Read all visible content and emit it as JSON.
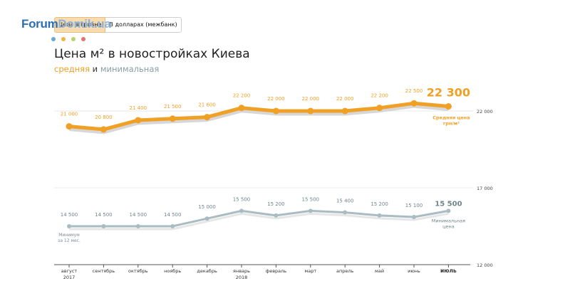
{
  "logo": {
    "part1": "Forum",
    "part2": "Domik.ua",
    "dot_colors": [
      "#6aa5d8",
      "#f2b441",
      "#b7d36c",
      "#e0736f"
    ]
  },
  "toggle": {
    "active_label": "Цена в гривне",
    "inactive_label": "В долларах (межбанк)"
  },
  "header": {
    "title": "Цена м² в новостройках Киева",
    "subtitle_avg": "средняя",
    "subtitle_and": " и ",
    "subtitle_min": "минимальная"
  },
  "colors": {
    "avg": "#f0a024",
    "avg_shadow": "#d7d7d7",
    "min": "#a9bcc2",
    "min_shadow": "#e6e6e6",
    "min_text": "#6f858c",
    "tick": "#333333"
  },
  "chart_data": {
    "type": "line",
    "categories": [
      "август\n2017",
      "сентябрь",
      "октябрь",
      "ноябрь",
      "декабрь",
      "январь\n2018",
      "февраль",
      "март",
      "апрель",
      "май",
      "июнь",
      "июль"
    ],
    "series": [
      {
        "name": "Средняя цена грн/м²",
        "values": [
          21000,
          20800,
          21400,
          21500,
          21600,
          22200,
          22000,
          22000,
          22000,
          22200,
          22500,
          22300
        ],
        "labels": [
          "21 000",
          "20 800",
          "21 400",
          "21 500",
          "21 600",
          "22 200",
          "22 000",
          "22 000",
          "22 000",
          "22 200",
          "22 500",
          "22 300"
        ],
        "end_label": "Средняя цена\nгрн/м²"
      },
      {
        "name": "Минимальная цена",
        "values": [
          14500,
          14500,
          14500,
          14500,
          15000,
          15500,
          15200,
          15500,
          15400,
          15200,
          15100,
          15500
        ],
        "labels": [
          "14 500",
          "14 500",
          "14 500",
          "14 500",
          "15 000",
          "15 500",
          "15 200",
          "15 500",
          "15 400",
          "15 200",
          "15 100",
          "15 500"
        ],
        "end_label": "Минимальная\nцена"
      }
    ],
    "annotation": "Минимум\nза 12 мес.",
    "y_ticks": [
      {
        "value": 22000,
        "label": "22 000"
      },
      {
        "value": 17000,
        "label": "17 000"
      },
      {
        "value": 12000,
        "label": "12 000"
      }
    ],
    "ylim": [
      12000,
      23000
    ],
    "bold_last_category": true,
    "grid": true
  }
}
